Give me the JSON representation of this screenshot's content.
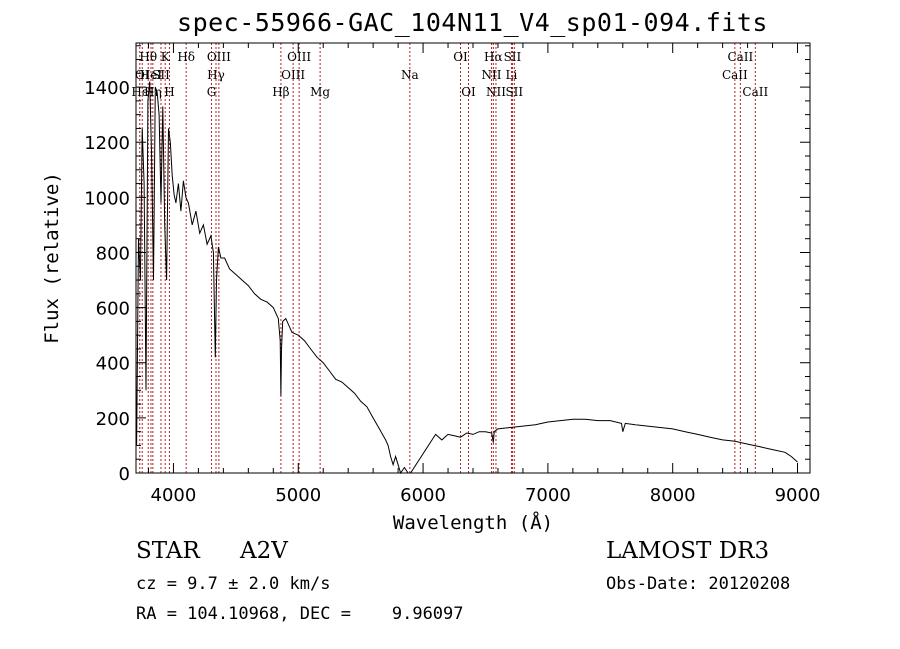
{
  "title": "spec-55966-GAC_104N11_V4_sp01-094.fits",
  "info": {
    "class": "STAR",
    "subclass": "A2V",
    "survey": "LAMOST DR3",
    "cz": "cz = 9.7 ± 2.0 km/s",
    "obs_date": "Obs-Date: 20120208",
    "radec": "RA = 104.10968, DEC =    9.96097"
  },
  "colors": {
    "line": "#000000",
    "marker": "#b22222",
    "axis": "#000000"
  },
  "chart_data": {
    "type": "line",
    "title": "spec-55966-GAC_104N11_V4_sp01-094.fits",
    "xlabel": "Wavelength (Å)",
    "ylabel": "Flux (relative)",
    "xlim": [
      3700,
      9100
    ],
    "ylim": [
      0,
      1560
    ],
    "xticks": [
      4000,
      5000,
      6000,
      7000,
      8000,
      9000
    ],
    "yticks": [
      0,
      200,
      400,
      600,
      800,
      1000,
      1200,
      1400
    ],
    "grid": false,
    "series": [
      {
        "name": "flux",
        "x": [
          3705,
          3720,
          3735,
          3750,
          3765,
          3780,
          3795,
          3810,
          3825,
          3840,
          3855,
          3870,
          3885,
          3900,
          3915,
          3930,
          3945,
          3960,
          3975,
          3990,
          4005,
          4020,
          4040,
          4060,
          4080,
          4100,
          4120,
          4150,
          4180,
          4210,
          4240,
          4270,
          4300,
          4320,
          4335,
          4345,
          4360,
          4380,
          4410,
          4450,
          4500,
          4550,
          4600,
          4650,
          4700,
          4750,
          4800,
          4840,
          4855,
          4861,
          4866,
          4875,
          4900,
          4950,
          5000,
          5050,
          5100,
          5150,
          5200,
          5250,
          5300,
          5350,
          5400,
          5450,
          5500,
          5550,
          5600,
          5650,
          5700,
          5720,
          5740,
          5760,
          5780,
          5800,
          5820,
          5850,
          5880,
          5900,
          6100,
          6150,
          6200,
          6250,
          6300,
          6350,
          6400,
          6450,
          6500,
          6550,
          6563,
          6570,
          6600,
          6700,
          6800,
          6900,
          7000,
          7100,
          7200,
          7300,
          7400,
          7500,
          7590,
          7600,
          7620,
          7700,
          7800,
          7900,
          8000,
          8100,
          8200,
          8300,
          8400,
          8500,
          8600,
          8700,
          8800,
          8900,
          8950,
          9000
        ],
        "values": [
          100,
          850,
          700,
          1250,
          1050,
          300,
          1350,
          1420,
          1150,
          700,
          1400,
          1380,
          1300,
          980,
          1330,
          900,
          700,
          1250,
          1200,
          1080,
          1010,
          980,
          1050,
          950,
          1060,
          1000,
          980,
          900,
          950,
          870,
          900,
          830,
          860,
          800,
          420,
          700,
          820,
          780,
          780,
          740,
          720,
          700,
          680,
          650,
          630,
          620,
          600,
          560,
          480,
          280,
          450,
          550,
          560,
          510,
          500,
          480,
          450,
          420,
          400,
          370,
          340,
          330,
          310,
          290,
          260,
          240,
          200,
          160,
          120,
          100,
          60,
          30,
          60,
          30,
          0,
          20,
          0,
          0,
          140,
          120,
          140,
          135,
          130,
          145,
          140,
          150,
          150,
          145,
          110,
          150,
          160,
          165,
          170,
          175,
          185,
          190,
          195,
          195,
          190,
          190,
          180,
          150,
          180,
          175,
          170,
          165,
          160,
          150,
          140,
          130,
          120,
          115,
          105,
          95,
          85,
          75,
          60,
          40
        ]
      }
    ],
    "lines": [
      {
        "label": "Hθ",
        "wave": 3798,
        "row": 1
      },
      {
        "label": "OI",
        "wave": 3750,
        "row": 2
      },
      {
        "label": "Hε",
        "wave": 3730,
        "row": 3
      },
      {
        "label": "HeI",
        "wave": 3820,
        "row": 2
      },
      {
        "label": "Hη",
        "wave": 3835,
        "row": 3
      },
      {
        "label": "K",
        "wave": 3934,
        "row": 1
      },
      {
        "label": "SII",
        "wave": 3900,
        "row": 2
      },
      {
        "label": "H",
        "wave": 3968,
        "row": 3
      },
      {
        "label": "Hδ",
        "wave": 4102,
        "row": 1
      },
      {
        "label": "OIII",
        "wave": 4364,
        "row": 1
      },
      {
        "label": "Hγ",
        "wave": 4341,
        "row": 2
      },
      {
        "label": "G",
        "wave": 4305,
        "row": 3
      },
      {
        "label": "Hβ",
        "wave": 4861,
        "row": 3
      },
      {
        "label": "OIII",
        "wave": 5007,
        "row": 1
      },
      {
        "label": "OIII",
        "wave": 4959,
        "row": 2
      },
      {
        "label": "Mg",
        "wave": 5175,
        "row": 3
      },
      {
        "label": "Na",
        "wave": 5894,
        "row": 2
      },
      {
        "label": "OI",
        "wave": 6300,
        "row": 1
      },
      {
        "label": "OI",
        "wave": 6364,
        "row": 3
      },
      {
        "label": "Hα",
        "wave": 6563,
        "row": 1
      },
      {
        "label": "SII",
        "wave": 6716,
        "row": 1
      },
      {
        "label": "NII",
        "wave": 6548,
        "row": 2
      },
      {
        "label": "Li",
        "wave": 6708,
        "row": 2
      },
      {
        "label": "NII",
        "wave": 6584,
        "row": 3
      },
      {
        "label": "SII",
        "wave": 6731,
        "row": 3
      },
      {
        "label": "CaII",
        "wave": 8542,
        "row": 1
      },
      {
        "label": "CaII",
        "wave": 8498,
        "row": 2
      },
      {
        "label": "CaII",
        "wave": 8662,
        "row": 3
      }
    ]
  }
}
